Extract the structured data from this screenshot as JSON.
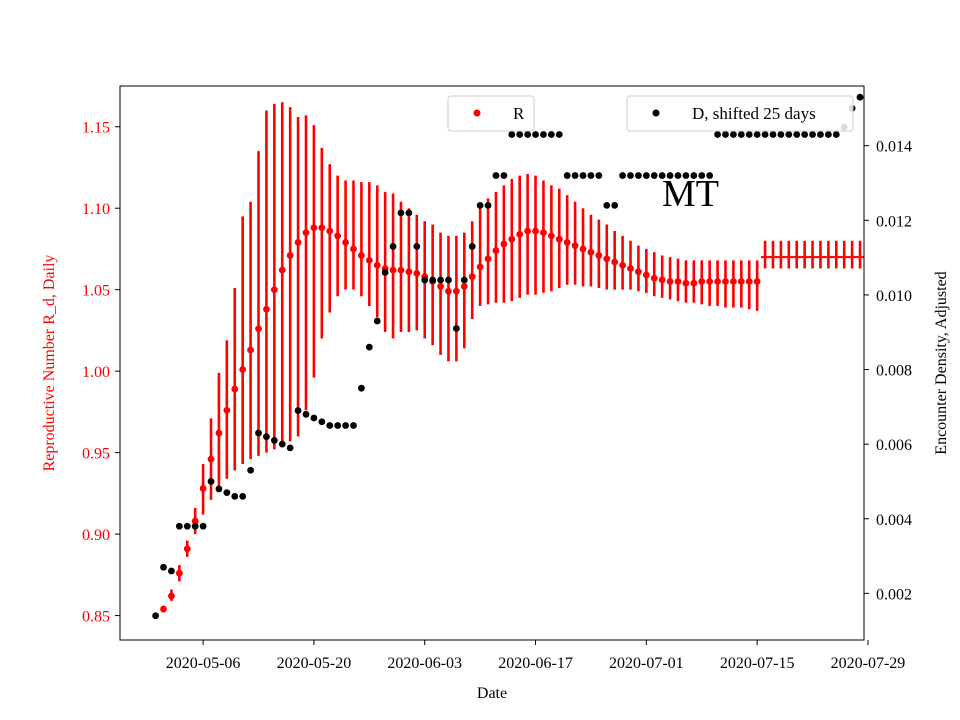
{
  "chart_data": {
    "type": "scatter",
    "title": "",
    "annotation": "MT",
    "xlabel": "Date",
    "ylabel_left": "Reproductive Number R_d, Daily",
    "ylabel_right": "Encounter Density, Adjusted",
    "x_tick_labels": [
      "2020-05-06",
      "2020-05-20",
      "2020-06-03",
      "2020-06-17",
      "2020-07-01",
      "2020-07-15",
      "2020-07-29"
    ],
    "y_left_ticks": [
      "0.85",
      "0.90",
      "0.95",
      "1.00",
      "1.05",
      "1.10",
      "1.15"
    ],
    "y_right_ticks": [
      "0.002",
      "0.004",
      "0.006",
      "0.008",
      "0.010",
      "0.012",
      "0.014"
    ],
    "x_range_days": [
      -10.5,
      83.5
    ],
    "y_left_range": [
      0.835,
      1.175
    ],
    "y_right_range": [
      0.00075,
      0.0156
    ],
    "legend_left_label": "R",
    "legend_right_label": "D, shifted 25 days",
    "colors": {
      "r_series": "#ff0000",
      "d_series": "#000000",
      "left_axis_text": "#ff0000",
      "right_axis_text": "#000000"
    },
    "series": [
      {
        "name": "R",
        "axis": "left",
        "x_days": [
          -5,
          -4,
          -3,
          -2,
          -1,
          0,
          1,
          2,
          3,
          4,
          5,
          6,
          7,
          8,
          9,
          10,
          11,
          12,
          13,
          14,
          15,
          16,
          17,
          18,
          19,
          20,
          21,
          22,
          23,
          24,
          25,
          26,
          27,
          28,
          29,
          30,
          31,
          32,
          33,
          34,
          35,
          36,
          37,
          38,
          39,
          40,
          41,
          42,
          43,
          44,
          45,
          46,
          47,
          48,
          49,
          50,
          51,
          52,
          53,
          54,
          55,
          56,
          57,
          58,
          59,
          60,
          61,
          62,
          63,
          64,
          65,
          66,
          67,
          68,
          69,
          70
        ],
        "values": [
          0.854,
          0.862,
          0.876,
          0.891,
          0.908,
          0.928,
          0.946,
          0.962,
          0.976,
          0.989,
          1.001,
          1.013,
          1.026,
          1.038,
          1.05,
          1.062,
          1.071,
          1.079,
          1.085,
          1.088,
          1.088,
          1.086,
          1.083,
          1.079,
          1.075,
          1.071,
          1.068,
          1.065,
          1.063,
          1.062,
          1.062,
          1.061,
          1.06,
          1.058,
          1.055,
          1.052,
          1.049,
          1.049,
          1.052,
          1.058,
          1.064,
          1.069,
          1.074,
          1.078,
          1.081,
          1.084,
          1.086,
          1.086,
          1.085,
          1.083,
          1.081,
          1.079,
          1.077,
          1.075,
          1.073,
          1.071,
          1.069,
          1.067,
          1.065,
          1.063,
          1.061,
          1.059,
          1.057,
          1.056,
          1.055,
          1.055,
          1.054,
          1.054,
          1.055,
          1.055,
          1.055,
          1.055,
          1.055,
          1.055,
          1.055,
          1.055
        ],
        "err_lo": [
          0.852,
          0.859,
          0.871,
          0.886,
          0.9,
          0.912,
          0.921,
          0.929,
          0.934,
          0.939,
          0.943,
          0.946,
          0.948,
          0.95,
          0.952,
          0.954,
          0.957,
          0.96,
          0.976,
          0.996,
          1.02,
          1.036,
          1.046,
          1.05,
          1.05,
          1.046,
          1.04,
          1.033,
          1.024,
          1.02,
          1.024,
          1.024,
          1.025,
          1.02,
          1.016,
          1.01,
          1.006,
          1.006,
          1.014,
          1.032,
          1.04,
          1.041,
          1.042,
          1.042,
          1.043,
          1.045,
          1.047,
          1.047,
          1.048,
          1.049,
          1.051,
          1.053,
          1.053,
          1.052,
          1.052,
          1.051,
          1.05,
          1.05,
          1.05,
          1.05,
          1.049,
          1.048,
          1.046,
          1.045,
          1.044,
          1.043,
          1.042,
          1.042,
          1.041,
          1.04,
          1.04,
          1.039,
          1.039,
          1.039,
          1.038,
          1.037
        ],
        "err_hi": [
          0.856,
          0.866,
          0.881,
          0.896,
          0.916,
          0.943,
          0.971,
          0.999,
          1.019,
          1.051,
          1.095,
          1.104,
          1.135,
          1.16,
          1.164,
          1.165,
          1.162,
          1.156,
          1.157,
          1.151,
          1.137,
          1.127,
          1.12,
          1.117,
          1.117,
          1.116,
          1.116,
          1.114,
          1.11,
          1.109,
          1.104,
          1.1,
          1.096,
          1.092,
          1.09,
          1.085,
          1.083,
          1.083,
          1.085,
          1.092,
          1.101,
          1.106,
          1.11,
          1.114,
          1.118,
          1.12,
          1.121,
          1.12,
          1.117,
          1.114,
          1.112,
          1.108,
          1.104,
          1.1,
          1.096,
          1.093,
          1.09,
          1.086,
          1.083,
          1.08,
          1.077,
          1.075,
          1.073,
          1.071,
          1.07,
          1.069,
          1.068,
          1.068,
          1.068,
          1.068,
          1.068,
          1.068,
          1.068,
          1.068,
          1.068,
          1.068
        ]
      },
      {
        "name": "R (flat segment)",
        "axis": "left",
        "x_days": [
          71,
          72,
          73,
          74,
          75,
          76,
          77,
          78,
          79,
          80,
          81,
          82,
          83
        ],
        "values": [
          1.07,
          1.07,
          1.07,
          1.07,
          1.07,
          1.07,
          1.07,
          1.07,
          1.07,
          1.07,
          1.07,
          1.07,
          1.07
        ],
        "err_lo": [
          1.063,
          1.063,
          1.063,
          1.063,
          1.063,
          1.063,
          1.063,
          1.063,
          1.063,
          1.063,
          1.063,
          1.063,
          1.063
        ],
        "err_hi": [
          1.08,
          1.08,
          1.08,
          1.08,
          1.08,
          1.08,
          1.08,
          1.08,
          1.08,
          1.08,
          1.08,
          1.08,
          1.08
        ]
      },
      {
        "name": "D, shifted 25 days",
        "axis": "right",
        "x_days": [
          -6,
          -5,
          -4,
          -3,
          -2,
          -1,
          0,
          1,
          2,
          3,
          4,
          5,
          6,
          7,
          8,
          9,
          10,
          11,
          12,
          13,
          14,
          15,
          16,
          17,
          18,
          19,
          20,
          21,
          22,
          23,
          24,
          25,
          26,
          27,
          28,
          29,
          30,
          31,
          32,
          33,
          34,
          35,
          36,
          37,
          38,
          39,
          40,
          41,
          42,
          43,
          44,
          45,
          46,
          47,
          48,
          49,
          50,
          51,
          52,
          53,
          54,
          55,
          56,
          57,
          58,
          59,
          60,
          61,
          62,
          63,
          64,
          65,
          66,
          67,
          68,
          69,
          70,
          71,
          72,
          73,
          74,
          75,
          76,
          77,
          78,
          79,
          80,
          81,
          82,
          83
        ],
        "values": [
          0.0014,
          0.0027,
          0.0026,
          0.0038,
          0.0038,
          0.0038,
          0.0038,
          0.005,
          0.0048,
          0.0047,
          0.0046,
          0.0046,
          0.0053,
          0.0063,
          0.0062,
          0.0061,
          0.006,
          0.0059,
          0.0069,
          0.0068,
          0.0067,
          0.0066,
          0.0065,
          0.0065,
          0.0065,
          0.0065,
          0.0075,
          0.0086,
          0.0093,
          0.0106,
          0.0113,
          0.0122,
          0.0122,
          0.0113,
          0.0104,
          0.0104,
          0.0104,
          0.0104,
          0.0091,
          0.0104,
          0.0113,
          0.0124,
          0.0124,
          0.0132,
          0.0132,
          0.0143,
          0.0143,
          0.0143,
          0.0143,
          0.0143,
          0.0143,
          0.0143,
          0.0132,
          0.0132,
          0.0132,
          0.0132,
          0.0132,
          0.0124,
          0.0124,
          0.0132,
          0.0132,
          0.0132,
          0.0132,
          0.0132,
          0.0132,
          0.0132,
          0.0132,
          0.0132,
          0.0132,
          0.0132,
          0.0132,
          0.0143,
          0.0143,
          0.0143,
          0.0143,
          0.0143,
          0.0143,
          0.0143,
          0.0143,
          0.0143,
          0.0143,
          0.0143,
          0.0143,
          0.0143,
          0.0143,
          0.0143,
          0.0143,
          0.0145,
          0.015,
          0.0153
        ]
      }
    ]
  }
}
